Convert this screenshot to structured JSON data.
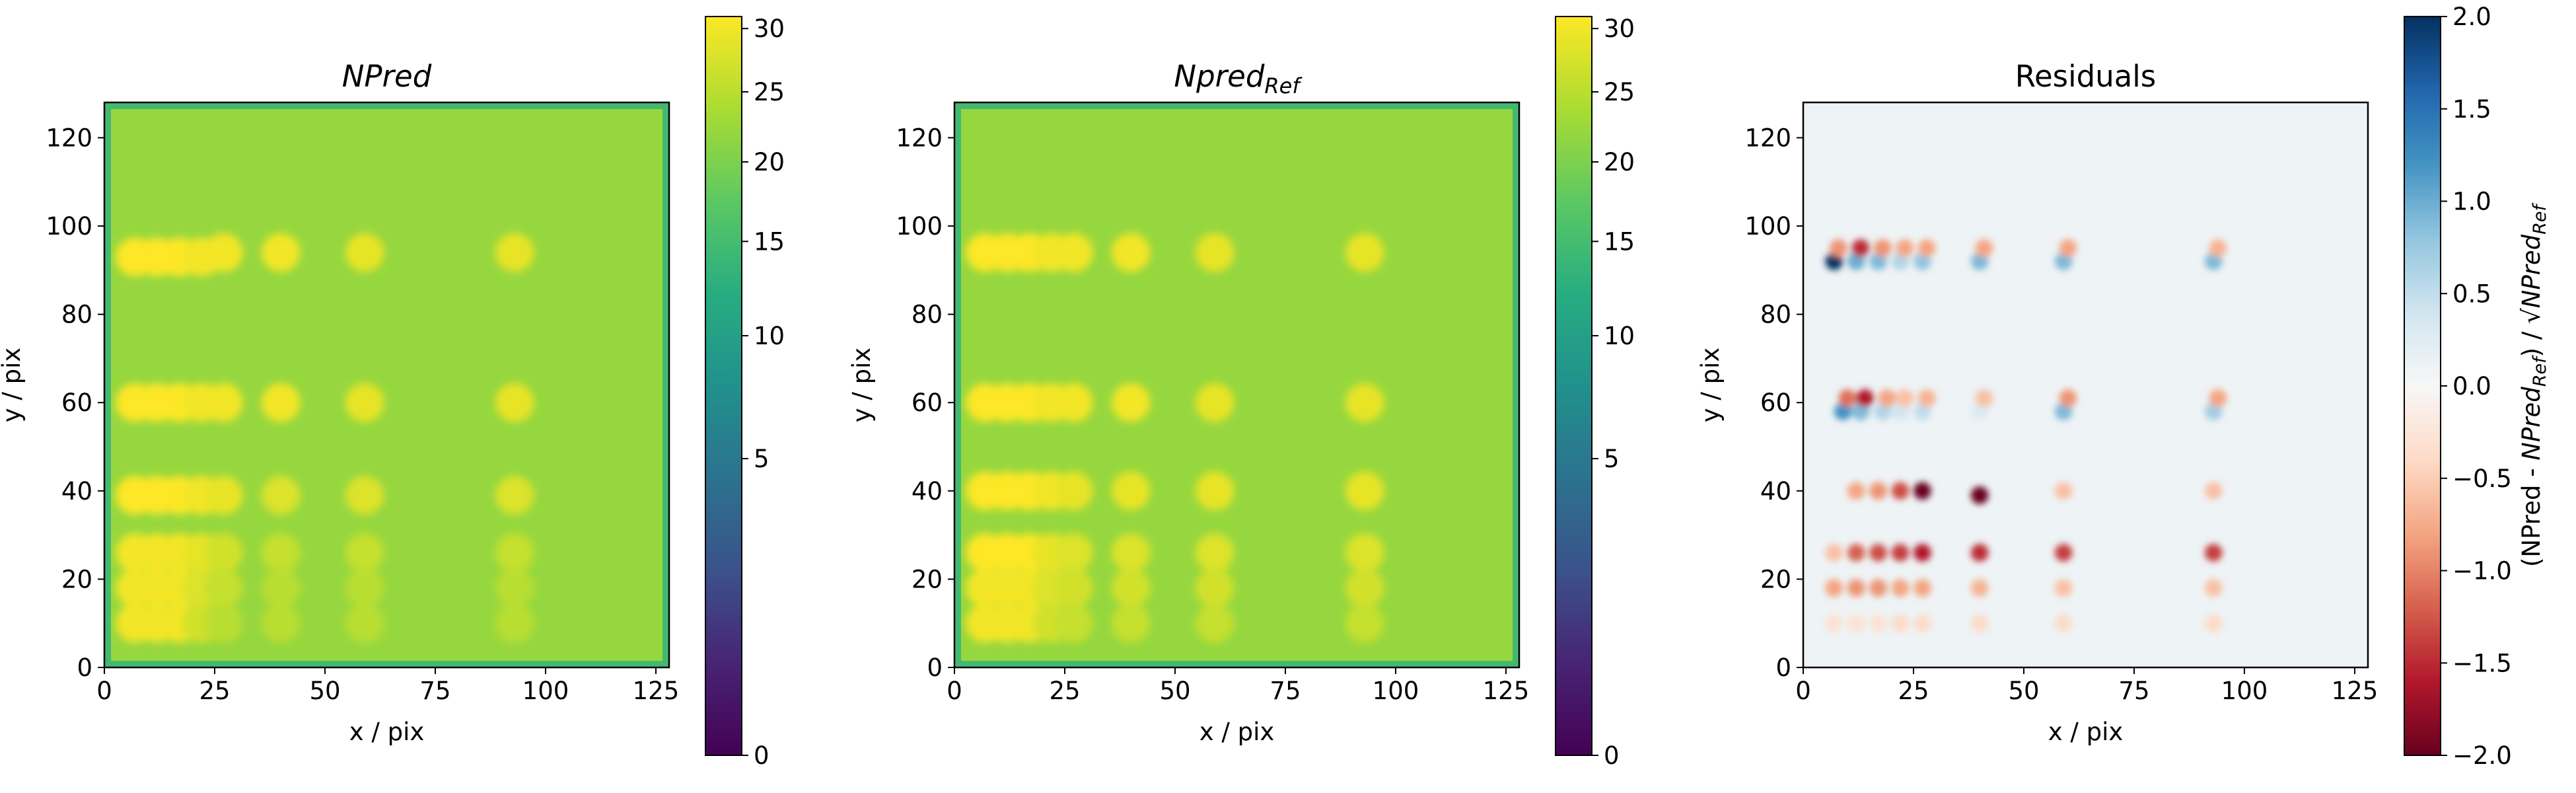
{
  "chart_data": [
    {
      "type": "heatmap",
      "title": "NPred",
      "title_italic": true,
      "xlabel": "x / pix",
      "ylabel": "y / pix",
      "xlim": [
        0,
        128
      ],
      "ylim": [
        0,
        128
      ],
      "xticks": [
        0,
        25,
        50,
        75,
        100,
        125
      ],
      "yticks": [
        0,
        20,
        40,
        60,
        80,
        100,
        120
      ],
      "colorbar": {
        "colormap": "viridis",
        "scale": "sqrt",
        "range": [
          0,
          31
        ],
        "ticks": [
          0,
          5,
          10,
          15,
          20,
          25,
          30
        ],
        "label": ""
      },
      "background_value": 22,
      "sources": [
        {
          "x": 7,
          "y": 93,
          "value": 31
        },
        {
          "x": 12,
          "y": 93,
          "value": 31
        },
        {
          "x": 17,
          "y": 93,
          "value": 31
        },
        {
          "x": 22,
          "y": 93,
          "value": 30
        },
        {
          "x": 27,
          "y": 94,
          "value": 30
        },
        {
          "x": 40,
          "y": 94,
          "value": 30
        },
        {
          "x": 59,
          "y": 94,
          "value": 29
        },
        {
          "x": 93,
          "y": 94,
          "value": 29
        },
        {
          "x": 7,
          "y": 60,
          "value": 31
        },
        {
          "x": 12,
          "y": 60,
          "value": 31
        },
        {
          "x": 17,
          "y": 60,
          "value": 31
        },
        {
          "x": 22,
          "y": 60,
          "value": 30
        },
        {
          "x": 27,
          "y": 60,
          "value": 30
        },
        {
          "x": 40,
          "y": 60,
          "value": 30
        },
        {
          "x": 59,
          "y": 60,
          "value": 29
        },
        {
          "x": 93,
          "y": 60,
          "value": 29
        },
        {
          "x": 7,
          "y": 39,
          "value": 31
        },
        {
          "x": 12,
          "y": 39,
          "value": 31
        },
        {
          "x": 17,
          "y": 39,
          "value": 31
        },
        {
          "x": 22,
          "y": 39,
          "value": 30
        },
        {
          "x": 27,
          "y": 39,
          "value": 29
        },
        {
          "x": 40,
          "y": 39,
          "value": 28
        },
        {
          "x": 59,
          "y": 39,
          "value": 28
        },
        {
          "x": 93,
          "y": 39,
          "value": 28
        },
        {
          "x": 7,
          "y": 26,
          "value": 30
        },
        {
          "x": 12,
          "y": 26,
          "value": 30
        },
        {
          "x": 17,
          "y": 26,
          "value": 30
        },
        {
          "x": 22,
          "y": 26,
          "value": 29
        },
        {
          "x": 27,
          "y": 26,
          "value": 27
        },
        {
          "x": 40,
          "y": 26,
          "value": 26
        },
        {
          "x": 59,
          "y": 26,
          "value": 26
        },
        {
          "x": 93,
          "y": 26,
          "value": 26
        },
        {
          "x": 7,
          "y": 18,
          "value": 30
        },
        {
          "x": 12,
          "y": 18,
          "value": 30
        },
        {
          "x": 17,
          "y": 18,
          "value": 30
        },
        {
          "x": 22,
          "y": 18,
          "value": 28
        },
        {
          "x": 27,
          "y": 18,
          "value": 26
        },
        {
          "x": 40,
          "y": 18,
          "value": 25
        },
        {
          "x": 59,
          "y": 18,
          "value": 25
        },
        {
          "x": 93,
          "y": 18,
          "value": 25
        },
        {
          "x": 7,
          "y": 10,
          "value": 30
        },
        {
          "x": 12,
          "y": 10,
          "value": 30
        },
        {
          "x": 17,
          "y": 10,
          "value": 30
        },
        {
          "x": 22,
          "y": 10,
          "value": 27
        },
        {
          "x": 27,
          "y": 10,
          "value": 25
        },
        {
          "x": 40,
          "y": 10,
          "value": 25
        },
        {
          "x": 59,
          "y": 10,
          "value": 25
        },
        {
          "x": 93,
          "y": 10,
          "value": 25
        }
      ]
    },
    {
      "type": "heatmap",
      "title": "Npred",
      "title_subscript": "Ref",
      "title_italic": true,
      "xlabel": "x / pix",
      "ylabel": "y / pix",
      "xlim": [
        0,
        128
      ],
      "ylim": [
        0,
        128
      ],
      "xticks": [
        0,
        25,
        50,
        75,
        100,
        125
      ],
      "yticks": [
        0,
        20,
        40,
        60,
        80,
        100,
        120
      ],
      "colorbar": {
        "colormap": "viridis",
        "scale": "sqrt",
        "range": [
          0,
          31
        ],
        "ticks": [
          0,
          5,
          10,
          15,
          20,
          25,
          30
        ],
        "label": ""
      },
      "background_value": 22,
      "sources": [
        {
          "x": 7,
          "y": 94,
          "value": 31
        },
        {
          "x": 12,
          "y": 94,
          "value": 31
        },
        {
          "x": 17,
          "y": 94,
          "value": 31
        },
        {
          "x": 22,
          "y": 94,
          "value": 30
        },
        {
          "x": 27,
          "y": 94,
          "value": 30
        },
        {
          "x": 40,
          "y": 94,
          "value": 30
        },
        {
          "x": 59,
          "y": 94,
          "value": 29
        },
        {
          "x": 93,
          "y": 94,
          "value": 29
        },
        {
          "x": 7,
          "y": 60,
          "value": 31
        },
        {
          "x": 12,
          "y": 60,
          "value": 31
        },
        {
          "x": 17,
          "y": 60,
          "value": 31
        },
        {
          "x": 22,
          "y": 60,
          "value": 30
        },
        {
          "x": 27,
          "y": 60,
          "value": 30
        },
        {
          "x": 40,
          "y": 60,
          "value": 30
        },
        {
          "x": 59,
          "y": 60,
          "value": 29
        },
        {
          "x": 93,
          "y": 60,
          "value": 29
        },
        {
          "x": 7,
          "y": 40,
          "value": 31
        },
        {
          "x": 12,
          "y": 40,
          "value": 31
        },
        {
          "x": 17,
          "y": 40,
          "value": 31
        },
        {
          "x": 22,
          "y": 40,
          "value": 30
        },
        {
          "x": 27,
          "y": 40,
          "value": 29
        },
        {
          "x": 40,
          "y": 40,
          "value": 29
        },
        {
          "x": 59,
          "y": 40,
          "value": 29
        },
        {
          "x": 93,
          "y": 40,
          "value": 29
        },
        {
          "x": 7,
          "y": 26,
          "value": 31
        },
        {
          "x": 12,
          "y": 26,
          "value": 31
        },
        {
          "x": 17,
          "y": 26,
          "value": 31
        },
        {
          "x": 22,
          "y": 26,
          "value": 29
        },
        {
          "x": 27,
          "y": 26,
          "value": 28
        },
        {
          "x": 40,
          "y": 26,
          "value": 28
        },
        {
          "x": 59,
          "y": 26,
          "value": 28
        },
        {
          "x": 93,
          "y": 26,
          "value": 28
        },
        {
          "x": 7,
          "y": 18,
          "value": 30
        },
        {
          "x": 12,
          "y": 18,
          "value": 30
        },
        {
          "x": 17,
          "y": 18,
          "value": 30
        },
        {
          "x": 22,
          "y": 18,
          "value": 28
        },
        {
          "x": 27,
          "y": 18,
          "value": 27
        },
        {
          "x": 40,
          "y": 18,
          "value": 27
        },
        {
          "x": 59,
          "y": 18,
          "value": 27
        },
        {
          "x": 93,
          "y": 18,
          "value": 27
        },
        {
          "x": 7,
          "y": 10,
          "value": 30
        },
        {
          "x": 12,
          "y": 10,
          "value": 30
        },
        {
          "x": 17,
          "y": 10,
          "value": 30
        },
        {
          "x": 22,
          "y": 10,
          "value": 27
        },
        {
          "x": 27,
          "y": 10,
          "value": 26
        },
        {
          "x": 40,
          "y": 10,
          "value": 26
        },
        {
          "x": 59,
          "y": 10,
          "value": 26
        },
        {
          "x": 93,
          "y": 10,
          "value": 26
        }
      ]
    },
    {
      "type": "heatmap",
      "title": "Residuals",
      "title_italic": false,
      "xlabel": "x / pix",
      "ylabel": "y / pix",
      "xlim": [
        0,
        128
      ],
      "ylim": [
        0,
        128
      ],
      "xticks": [
        0,
        25,
        50,
        75,
        100,
        125
      ],
      "yticks": [
        0,
        20,
        40,
        60,
        80,
        100,
        120
      ],
      "colorbar": {
        "colormap": "RdBu",
        "scale": "linear",
        "range": [
          -2.0,
          2.0
        ],
        "ticks": [
          -2.0,
          -1.5,
          -1.0,
          -0.5,
          0.0,
          0.5,
          1.0,
          1.5,
          2.0
        ],
        "tick_labels": [
          "−2.0",
          "−1.5",
          "−1.0",
          "−0.5",
          "0.0",
          "0.5",
          "1.0",
          "1.5",
          "2.0"
        ],
        "label": "(NPred - NPred_Ref) / √NPred_Ref"
      },
      "background_value": 0.1,
      "sources": [
        {
          "x": 7,
          "y": 92,
          "value": 2.0
        },
        {
          "x": 8,
          "y": 95,
          "value": -0.9
        },
        {
          "x": 12,
          "y": 92,
          "value": 1.0
        },
        {
          "x": 13,
          "y": 95,
          "value": -1.5
        },
        {
          "x": 17,
          "y": 92,
          "value": 0.9
        },
        {
          "x": 18,
          "y": 95,
          "value": -0.9
        },
        {
          "x": 22,
          "y": 92,
          "value": 0.6
        },
        {
          "x": 23,
          "y": 95,
          "value": -0.8
        },
        {
          "x": 27,
          "y": 92,
          "value": 0.8
        },
        {
          "x": 28,
          "y": 95,
          "value": -0.8
        },
        {
          "x": 40,
          "y": 92,
          "value": 0.9
        },
        {
          "x": 41,
          "y": 95,
          "value": -0.8
        },
        {
          "x": 59,
          "y": 92,
          "value": 0.9
        },
        {
          "x": 60,
          "y": 95,
          "value": -0.8
        },
        {
          "x": 93,
          "y": 92,
          "value": 0.9
        },
        {
          "x": 94,
          "y": 95,
          "value": -0.7
        },
        {
          "x": 9,
          "y": 58,
          "value": 1.2
        },
        {
          "x": 10,
          "y": 61,
          "value": -1.1
        },
        {
          "x": 13,
          "y": 58,
          "value": 0.9
        },
        {
          "x": 14,
          "y": 61,
          "value": -1.6
        },
        {
          "x": 18,
          "y": 58,
          "value": 0.6
        },
        {
          "x": 19,
          "y": 61,
          "value": -0.8
        },
        {
          "x": 22,
          "y": 58,
          "value": 0.4
        },
        {
          "x": 23,
          "y": 61,
          "value": -0.6
        },
        {
          "x": 27,
          "y": 58,
          "value": 0.5
        },
        {
          "x": 28,
          "y": 61,
          "value": -0.7
        },
        {
          "x": 40,
          "y": 58,
          "value": 0.3
        },
        {
          "x": 41,
          "y": 61,
          "value": -0.6
        },
        {
          "x": 59,
          "y": 58,
          "value": 0.9
        },
        {
          "x": 60,
          "y": 61,
          "value": -0.9
        },
        {
          "x": 93,
          "y": 58,
          "value": 0.7
        },
        {
          "x": 94,
          "y": 61,
          "value": -0.8
        },
        {
          "x": 12,
          "y": 40,
          "value": -0.8
        },
        {
          "x": 17,
          "y": 40,
          "value": -0.9
        },
        {
          "x": 22,
          "y": 40,
          "value": -1.3
        },
        {
          "x": 27,
          "y": 40,
          "value": -2.0
        },
        {
          "x": 40,
          "y": 39,
          "value": -2.0
        },
        {
          "x": 59,
          "y": 40,
          "value": -0.6
        },
        {
          "x": 93,
          "y": 40,
          "value": -0.6
        },
        {
          "x": 7,
          "y": 26,
          "value": -0.6
        },
        {
          "x": 12,
          "y": 26,
          "value": -1.2
        },
        {
          "x": 17,
          "y": 26,
          "value": -1.3
        },
        {
          "x": 22,
          "y": 26,
          "value": -1.4
        },
        {
          "x": 27,
          "y": 26,
          "value": -1.6
        },
        {
          "x": 40,
          "y": 26,
          "value": -1.5
        },
        {
          "x": 59,
          "y": 26,
          "value": -1.4
        },
        {
          "x": 93,
          "y": 26,
          "value": -1.4
        },
        {
          "x": 7,
          "y": 18,
          "value": -0.8
        },
        {
          "x": 12,
          "y": 18,
          "value": -0.9
        },
        {
          "x": 17,
          "y": 18,
          "value": -0.9
        },
        {
          "x": 22,
          "y": 18,
          "value": -0.8
        },
        {
          "x": 27,
          "y": 18,
          "value": -0.8
        },
        {
          "x": 40,
          "y": 18,
          "value": -0.7
        },
        {
          "x": 59,
          "y": 18,
          "value": -0.6
        },
        {
          "x": 93,
          "y": 18,
          "value": -0.6
        },
        {
          "x": 7,
          "y": 10,
          "value": -0.3
        },
        {
          "x": 12,
          "y": 10,
          "value": -0.3
        },
        {
          "x": 17,
          "y": 10,
          "value": -0.3
        },
        {
          "x": 22,
          "y": 10,
          "value": -0.4
        },
        {
          "x": 27,
          "y": 10,
          "value": -0.4
        },
        {
          "x": 40,
          "y": 10,
          "value": -0.4
        },
        {
          "x": 59,
          "y": 10,
          "value": -0.4
        },
        {
          "x": 93,
          "y": 10,
          "value": -0.4
        }
      ]
    }
  ]
}
